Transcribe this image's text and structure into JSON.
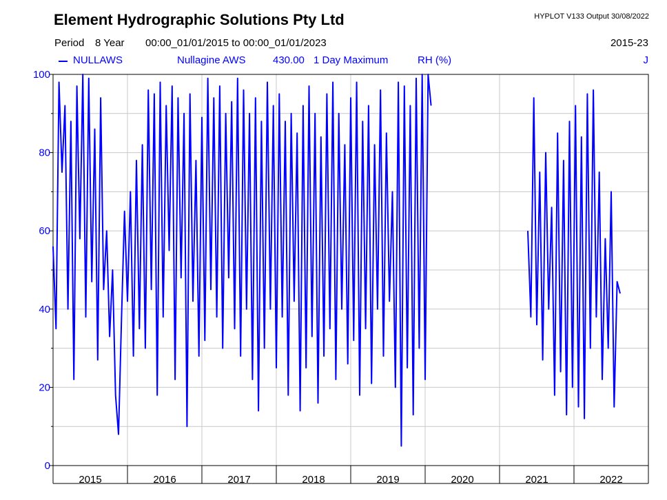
{
  "header": {
    "company": "Element Hydrographic Solutions Pty Ltd",
    "hyplot": "HYPLOT V133  Output 30/08/2022",
    "period_label": "Period",
    "period_value": "8 Year",
    "range": "00:00_01/01/2015 to 00:00_01/01/2023",
    "years": "2015-23"
  },
  "legend": {
    "site": "NULLAWS",
    "name": "Nullagine AWS",
    "var_code": "430.00",
    "stat": "1 Day Maximum",
    "units": "RH (%)",
    "flag": "J"
  },
  "colors": {
    "series": "#0000ff",
    "grid": "#c8c8c8"
  },
  "chart_data": {
    "type": "line",
    "grid": true,
    "ylim": [
      0,
      100
    ],
    "xlim": [
      2015.0,
      2023.0
    ],
    "yticks": [
      "0",
      "20",
      "40",
      "60",
      "80",
      "100"
    ],
    "xticks": [
      "2015",
      "2016",
      "2017",
      "2018",
      "2019",
      "2020",
      "2021",
      "2022"
    ],
    "series": [
      {
        "name": "NULLAWS",
        "segments": [
          {
            "x": [
              2015.0,
              2015.04,
              2015.08,
              2015.12,
              2015.16,
              2015.2,
              2015.24,
              2015.28,
              2015.32,
              2015.36,
              2015.4,
              2015.44,
              2015.48,
              2015.52,
              2015.56,
              2015.6,
              2015.64,
              2015.68,
              2015.72,
              2015.76,
              2015.8,
              2015.84,
              2015.88,
              2015.92,
              2015.96,
              2016.0,
              2016.04,
              2016.08,
              2016.12,
              2016.16,
              2016.2,
              2016.24,
              2016.28,
              2016.32,
              2016.36,
              2016.4,
              2016.44,
              2016.48,
              2016.52,
              2016.56,
              2016.6,
              2016.64,
              2016.68,
              2016.72,
              2016.76,
              2016.8,
              2016.84,
              2016.88,
              2016.92,
              2016.96,
              2017.0,
              2017.04,
              2017.08,
              2017.12,
              2017.16,
              2017.2,
              2017.24,
              2017.28,
              2017.32,
              2017.36,
              2017.4,
              2017.44,
              2017.48,
              2017.52,
              2017.56,
              2017.6,
              2017.64,
              2017.68,
              2017.72,
              2017.76,
              2017.8,
              2017.84,
              2017.88,
              2017.92,
              2017.96,
              2018.0,
              2018.04,
              2018.08,
              2018.12,
              2018.16,
              2018.2,
              2018.24,
              2018.28,
              2018.32,
              2018.36,
              2018.4,
              2018.44,
              2018.48,
              2018.52,
              2018.56,
              2018.6,
              2018.64,
              2018.68,
              2018.72,
              2018.76,
              2018.8,
              2018.84,
              2018.88,
              2018.92,
              2018.96,
              2019.0,
              2019.04,
              2019.08,
              2019.12,
              2019.16,
              2019.2,
              2019.24,
              2019.28,
              2019.32,
              2019.36,
              2019.4,
              2019.44,
              2019.48,
              2019.52,
              2019.56,
              2019.6,
              2019.64,
              2019.68,
              2019.72,
              2019.76,
              2019.8,
              2019.84,
              2019.88,
              2019.92,
              2019.96,
              2020.0,
              2020.04,
              2020.08
            ],
            "y": [
              56,
              35,
              98,
              75,
              92,
              40,
              88,
              22,
              97,
              58,
              100,
              38,
              99,
              47,
              86,
              27,
              94,
              45,
              60,
              33,
              50,
              18,
              8,
              38,
              65,
              42,
              70,
              28,
              78,
              35,
              82,
              30,
              96,
              45,
              95,
              18,
              98,
              38,
              92,
              55,
              97,
              22,
              94,
              48,
              90,
              10,
              95,
              42,
              78,
              28,
              89,
              32,
              99,
              45,
              94,
              38,
              97,
              30,
              90,
              48,
              93,
              35,
              99,
              28,
              96,
              40,
              90,
              22,
              94,
              14,
              88,
              30,
              98,
              40,
              92,
              25,
              95,
              38,
              88,
              18,
              90,
              42,
              85,
              14,
              92,
              25,
              97,
              33,
              90,
              16,
              84,
              28,
              95,
              35,
              98,
              22,
              90,
              40,
              82,
              26,
              94,
              32,
              98,
              18,
              88,
              35,
              92,
              21,
              82,
              40,
              96,
              28,
              85,
              42,
              70,
              20,
              98,
              5,
              97,
              25,
              92,
              13,
              99,
              30,
              100,
              22,
              100,
              92
            ]
          },
          {
            "x": [
              2021.38,
              2021.42,
              2021.46,
              2021.5,
              2021.54,
              2021.58,
              2021.62,
              2021.66,
              2021.7,
              2021.74,
              2021.78,
              2021.82,
              2021.86,
              2021.9,
              2021.94,
              2021.98,
              2022.02,
              2022.06,
              2022.1,
              2022.14,
              2022.18,
              2022.22,
              2022.26,
              2022.3,
              2022.34,
              2022.38,
              2022.42,
              2022.46,
              2022.5,
              2022.54,
              2022.58,
              2022.62
            ],
            "y": [
              60,
              38,
              94,
              36,
              75,
              27,
              80,
              40,
              66,
              18,
              85,
              24,
              78,
              13,
              88,
              20,
              92,
              15,
              84,
              12,
              95,
              30,
              96,
              38,
              75,
              22,
              58,
              30,
              70,
              15,
              47,
              44
            ]
          }
        ]
      }
    ]
  }
}
